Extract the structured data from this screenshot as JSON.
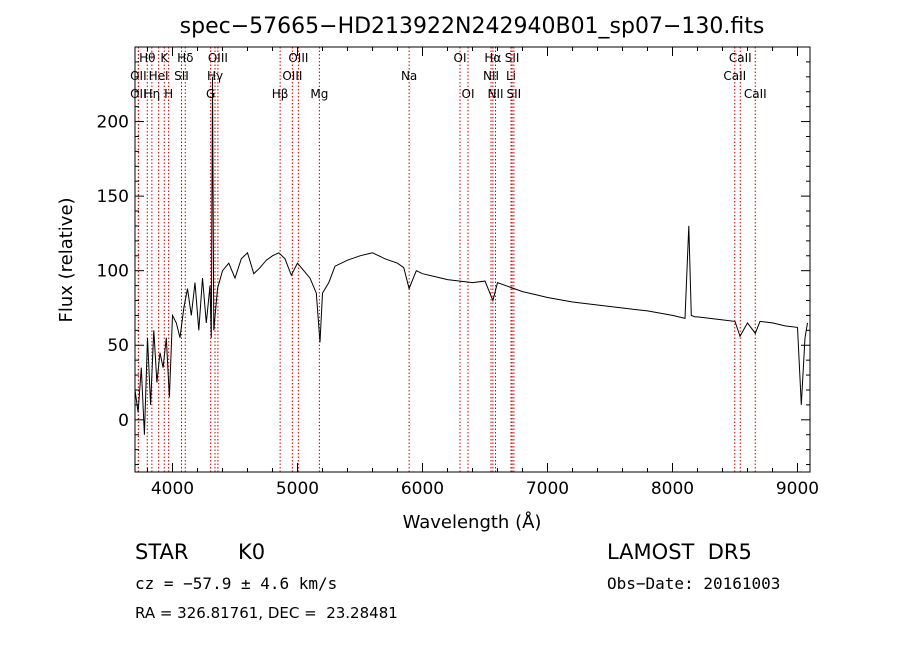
{
  "chart_data": {
    "type": "line",
    "title": "spec−57665−HD213922N242940B01_sp07−130.fits",
    "xlabel": "Wavelength (Å)",
    "ylabel": "Flux (relative)",
    "xlim": [
      3700,
      9100
    ],
    "ylim": [
      -35,
      250
    ],
    "xticks": [
      4000,
      5000,
      6000,
      7000,
      8000,
      9000
    ],
    "yticks": [
      0,
      50,
      100,
      150,
      200
    ],
    "xtick_labels": [
      "4000",
      "5000",
      "6000",
      "7000",
      "8000",
      "9000"
    ],
    "ytick_labels": [
      "0",
      "50",
      "100",
      "150",
      "200"
    ],
    "grid": false,
    "line_color": "#000000",
    "marker_color": "#cc0000",
    "series": [
      {
        "x": [
          3700,
          3725,
          3750,
          3775,
          3800,
          3825,
          3850,
          3875,
          3900,
          3925,
          3950,
          3975,
          4000,
          4030,
          4060,
          4090,
          4120,
          4150,
          4180,
          4210,
          4240,
          4270,
          4300,
          4310,
          4320,
          4330,
          4360,
          4400,
          4450,
          4500,
          4550,
          4600,
          4650,
          4700,
          4750,
          4800,
          4850,
          4900,
          4950,
          5000,
          5050,
          5100,
          5150,
          5180,
          5200,
          5250,
          5300,
          5400,
          5500,
          5600,
          5700,
          5800,
          5850,
          5893,
          5950,
          6000,
          6100,
          6200,
          6300,
          6400,
          6500,
          6563,
          6600,
          6700,
          6800,
          6900,
          7000,
          7200,
          7400,
          7600,
          7800,
          8000,
          8100,
          8130,
          8150,
          8180,
          8200,
          8300,
          8400,
          8500,
          8540,
          8600,
          8662,
          8700,
          8800,
          8900,
          9000,
          9030,
          9060,
          9080
        ],
        "y": [
          20,
          5,
          35,
          -10,
          55,
          10,
          60,
          25,
          45,
          35,
          55,
          15,
          70,
          65,
          55,
          75,
          88,
          70,
          92,
          60,
          95,
          65,
          90,
          55,
          230,
          60,
          88,
          100,
          105,
          95,
          108,
          112,
          98,
          102,
          107,
          110,
          112,
          108,
          97,
          105,
          100,
          95,
          85,
          52,
          85,
          92,
          103,
          107,
          110,
          112,
          108,
          105,
          102,
          88,
          100,
          98,
          96,
          94,
          93,
          92,
          93,
          80,
          92,
          89,
          86,
          84,
          82,
          79,
          77,
          75,
          73,
          70,
          68,
          130,
          70,
          69,
          69,
          68,
          67,
          66,
          56,
          65,
          58,
          66,
          65,
          63,
          62,
          10,
          55,
          65
        ]
      }
    ],
    "line_markers": [
      {
        "label": "Hθ",
        "x": 3798,
        "row": 0
      },
      {
        "label": "OII",
        "x": 3727,
        "row": 1
      },
      {
        "label": "OII",
        "x": 3727,
        "row": 2
      },
      {
        "label": "K",
        "x": 3934,
        "row": 0
      },
      {
        "label": "HeI",
        "x": 3889,
        "row": 1
      },
      {
        "label": "Hη",
        "x": 3835,
        "row": 2
      },
      {
        "label": "H",
        "x": 3969,
        "row": 2
      },
      {
        "label": "Hδ",
        "x": 4102,
        "row": 0
      },
      {
        "label": "SII",
        "x": 4072,
        "row": 1
      },
      {
        "label": "OIII",
        "x": 4363,
        "row": 0
      },
      {
        "label": "Hγ",
        "x": 4340,
        "row": 1
      },
      {
        "label": "G",
        "x": 4305,
        "row": 2
      },
      {
        "label": "OIII",
        "x": 5007,
        "row": 0
      },
      {
        "label": "OIII",
        "x": 4959,
        "row": 1
      },
      {
        "label": "Hβ",
        "x": 4861,
        "row": 2
      },
      {
        "label": "Mg",
        "x": 5175,
        "row": 2
      },
      {
        "label": "Na",
        "x": 5893,
        "row": 1
      },
      {
        "label": "OI",
        "x": 6300,
        "row": 0
      },
      {
        "label": "OI",
        "x": 6364,
        "row": 2
      },
      {
        "label": "Hα",
        "x": 6563,
        "row": 0
      },
      {
        "label": "SII",
        "x": 6717,
        "row": 0
      },
      {
        "label": "NII",
        "x": 6548,
        "row": 1
      },
      {
        "label": "Li",
        "x": 6708,
        "row": 1
      },
      {
        "label": "NII",
        "x": 6584,
        "row": 2
      },
      {
        "label": "SII",
        "x": 6731,
        "row": 2
      },
      {
        "label": "CaII",
        "x": 8542,
        "row": 0
      },
      {
        "label": "CaII",
        "x": 8498,
        "row": 1
      },
      {
        "label": "CaII",
        "x": 8662,
        "row": 2
      }
    ]
  },
  "info": {
    "object_type": "STAR",
    "subclass": "K0",
    "survey": "LAMOST  DR5",
    "redshift": "cz = −57.9 ± 4.6 km/s",
    "obs_date": "Obs−Date: 20161003",
    "coords": "RA = 326.81761, DEC =  23.28481"
  }
}
